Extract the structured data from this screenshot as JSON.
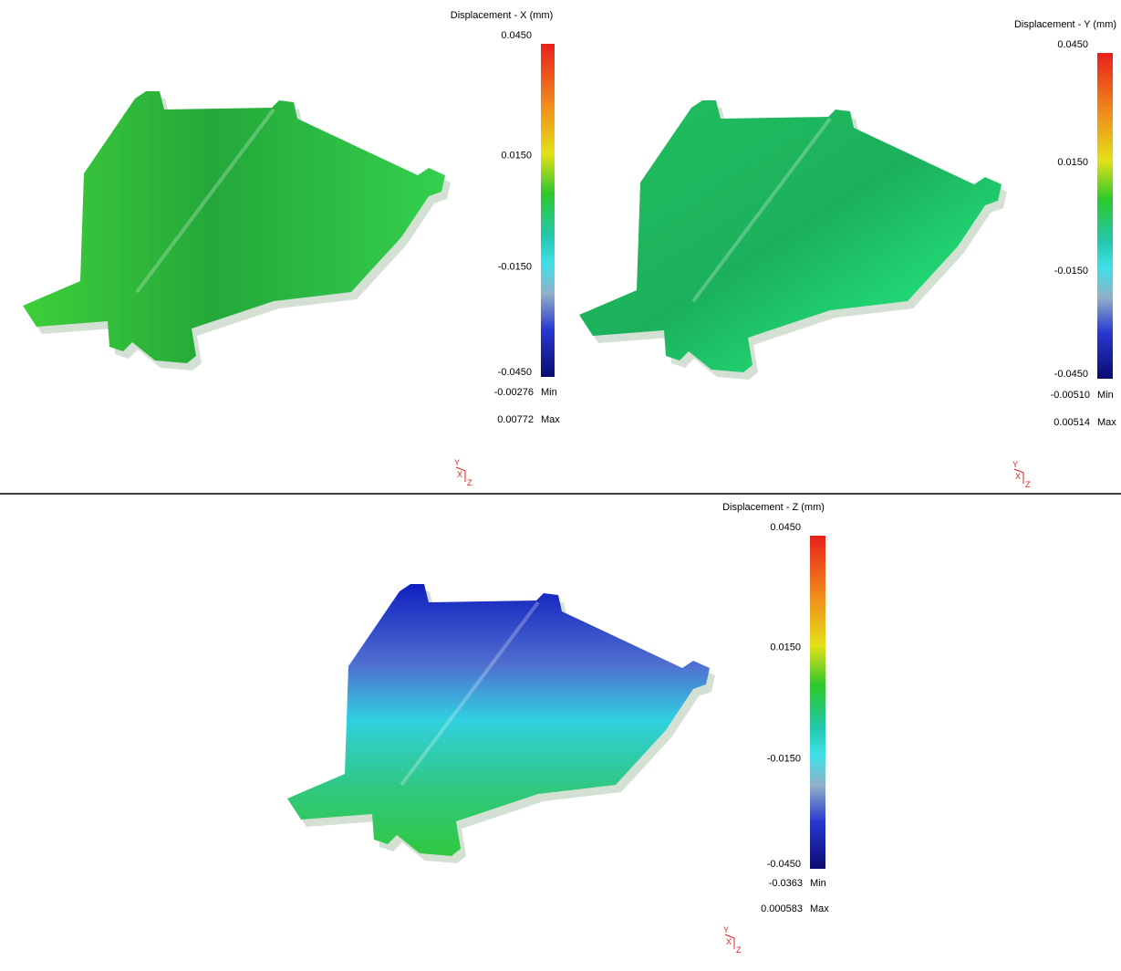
{
  "panels": [
    {
      "title": "Displacement - X (mm)",
      "scale": [
        "0.0450",
        "0.0150",
        "-0.0150",
        "-0.0450"
      ],
      "min": {
        "value": "-0.00276",
        "label": "Min"
      },
      "max": {
        "value": "0.00772",
        "label": "Max"
      }
    },
    {
      "title": "Displacement - Y (mm)",
      "scale": [
        "0.0450",
        "0.0150",
        "-0.0150",
        "-0.0450"
      ],
      "min": {
        "value": "-0.00510",
        "label": "Min"
      },
      "max": {
        "value": "0.00514",
        "label": "Max"
      }
    },
    {
      "title": "Displacement - Z (mm)",
      "scale": [
        "0.0450",
        "0.0150",
        "-0.0150",
        "-0.0450"
      ],
      "min": {
        "value": "-0.0363",
        "label": "Min"
      },
      "max": {
        "value": "0.000583",
        "label": "Max"
      }
    }
  ],
  "triad": {
    "y": "Y",
    "x": "X",
    "z": "Z"
  }
}
